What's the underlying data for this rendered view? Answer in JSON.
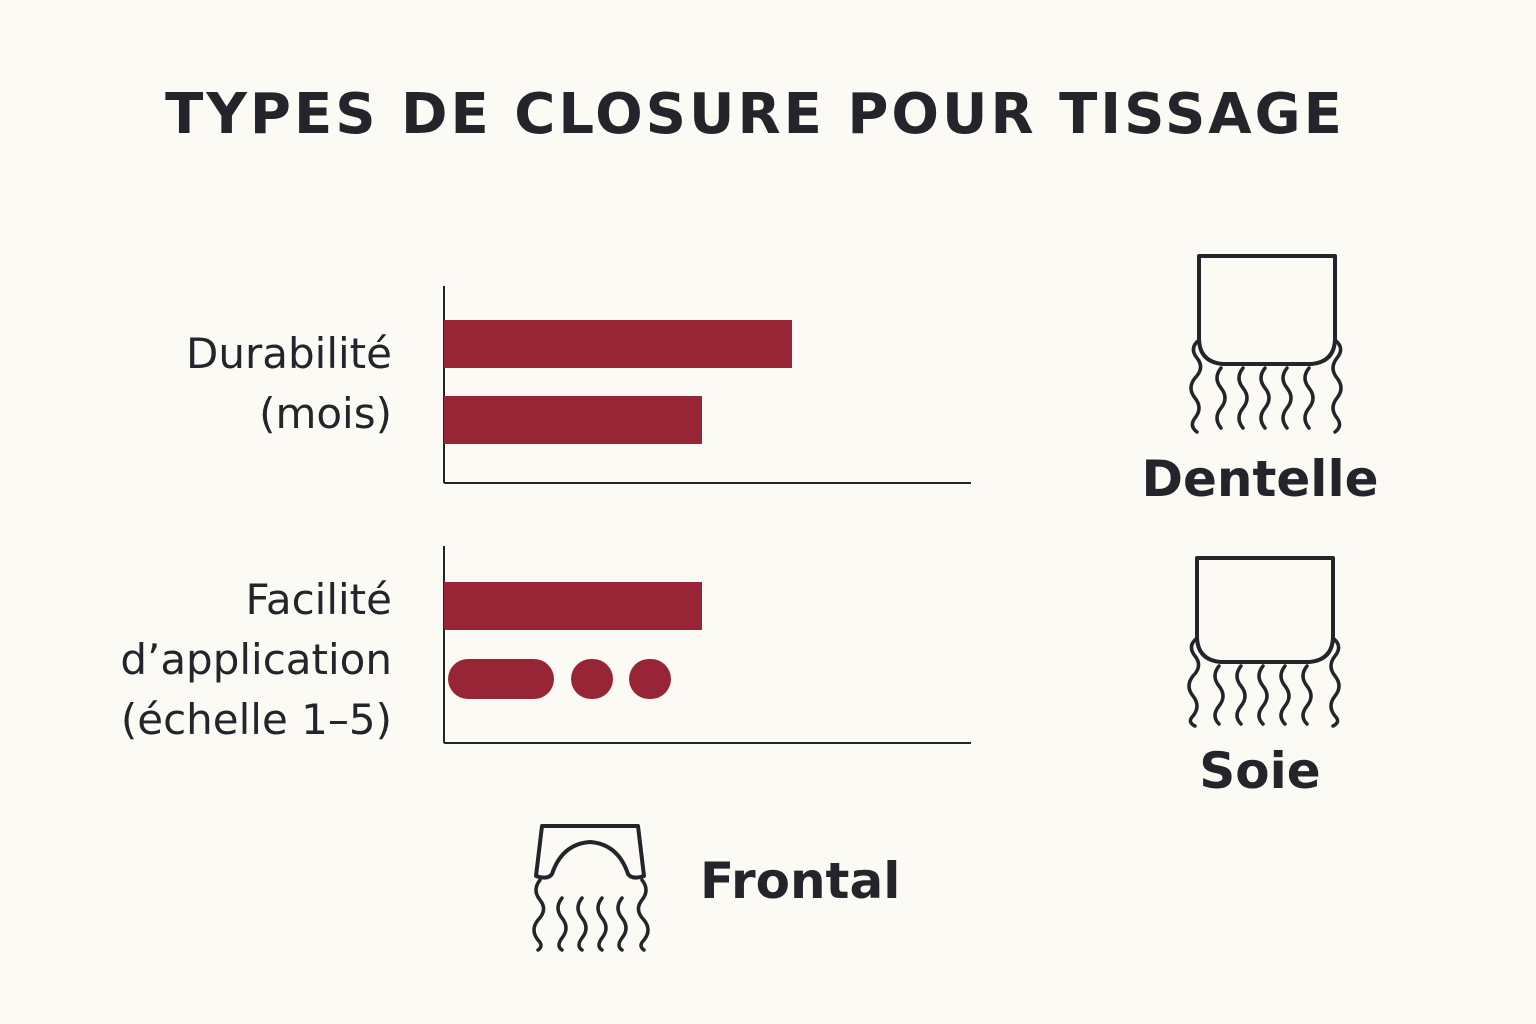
{
  "title": "TYPES DE CLOSURE POUR TISSAGE",
  "chart_data": {
    "type": "bar",
    "orientation": "horizontal",
    "title": "TYPES DE CLOSURE POUR TISSAGE",
    "colors": {
      "bar": "#982535",
      "axis": "#23252b"
    },
    "panels": [
      {
        "metric": "Durabilité\n(mois)",
        "bars": [
          {
            "value": 0.66,
            "shape": "bar"
          },
          {
            "value": 0.49,
            "shape": "bar"
          }
        ]
      },
      {
        "metric": "Facilité\nd’application\n(échelle 1–5)",
        "bars": [
          {
            "value": 0.49,
            "shape": "bar"
          }
        ],
        "dot_row": [
          "pill",
          "dot",
          "dot"
        ]
      }
    ]
  },
  "types": [
    {
      "name": "Dentelle",
      "icon": "closure-dentelle-icon"
    },
    {
      "name": "Soie",
      "icon": "closure-soie-icon"
    },
    {
      "name": "Frontal",
      "icon": "frontal-icon"
    }
  ]
}
